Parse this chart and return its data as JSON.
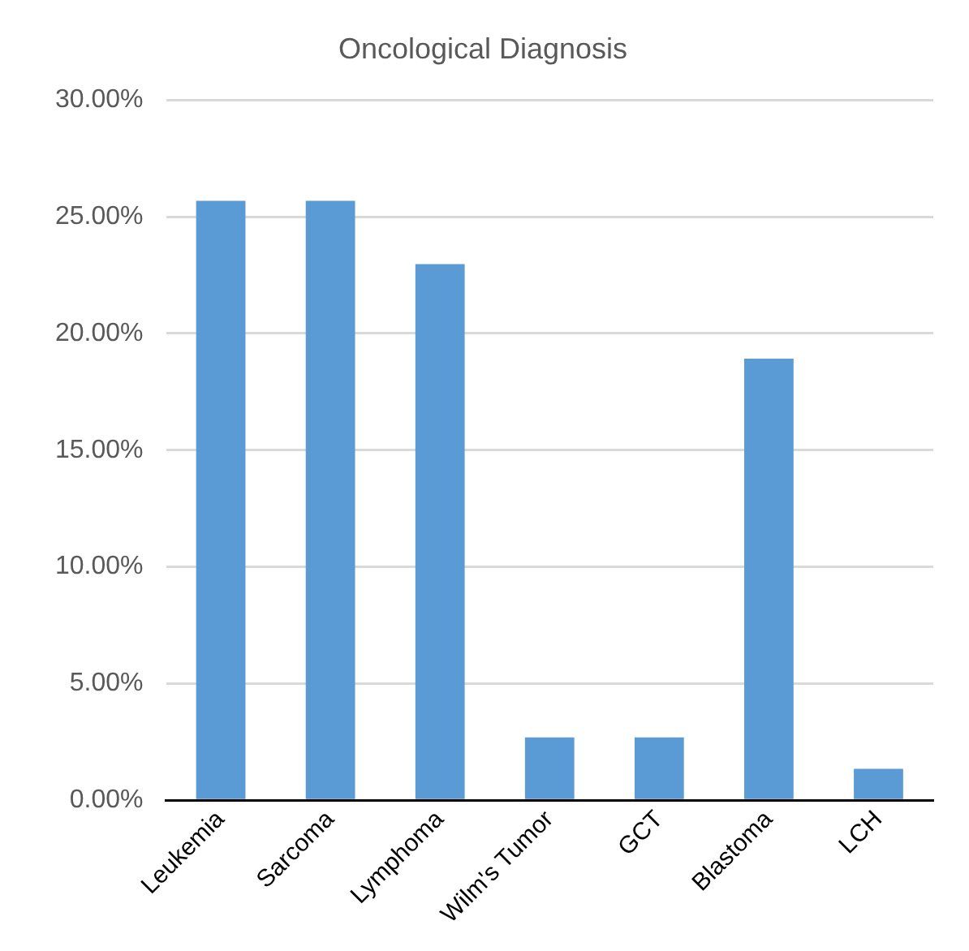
{
  "chart_data": {
    "type": "bar",
    "title": "Oncological Diagnosis",
    "categories": [
      "Leukemia",
      "Sarcoma",
      "Lymphoma",
      "Wilm's Tumor",
      "GCT",
      "Blastoma",
      "LCH"
    ],
    "values": [
      25.68,
      25.68,
      22.97,
      2.7,
      2.7,
      18.92,
      1.35
    ],
    "color": "#5b9bd5",
    "ylim": [
      0,
      30
    ],
    "yticks": [
      {
        "value": 0,
        "label": "0.00%"
      },
      {
        "value": 5,
        "label": "5.00%"
      },
      {
        "value": 10,
        "label": "10.00%"
      },
      {
        "value": 15,
        "label": "15.00%"
      },
      {
        "value": 20,
        "label": "20.00%"
      },
      {
        "value": 25,
        "label": "25.00%"
      },
      {
        "value": 30,
        "label": "30.00%"
      }
    ],
    "grid": "y",
    "legend": false
  }
}
